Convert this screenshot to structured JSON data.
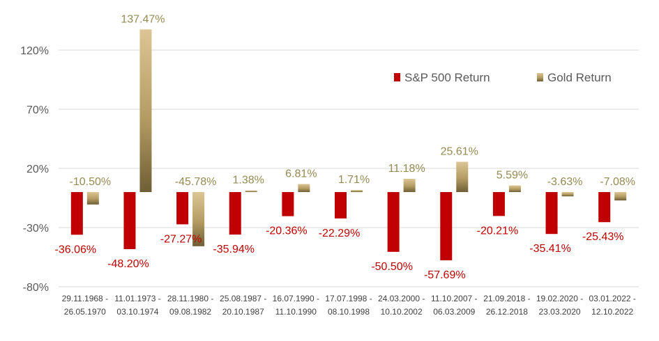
{
  "chart_data": {
    "type": "bar",
    "title": "",
    "xlabel": "",
    "ylabel": "",
    "ylim": [
      -80,
      140
    ],
    "yticks": [
      -80,
      -30,
      20,
      70,
      120
    ],
    "ytick_labels": [
      "-80%",
      "-30%",
      "20%",
      "70%",
      "120%"
    ],
    "grid": true,
    "legend_position": "top-right",
    "categories": [
      [
        "29.11.1968 -",
        "26.05.1970"
      ],
      [
        "11.01.1973 -",
        "03.10.1974"
      ],
      [
        "28.11.1980 -",
        "09.08.1982"
      ],
      [
        "25.08.1987 -",
        "20.10.1987"
      ],
      [
        "16.07.1990 -",
        "11.10.1990"
      ],
      [
        "17.07.1998 -",
        "08.10.1998"
      ],
      [
        "24.03.2000 -",
        "10.10.2002"
      ],
      [
        "11.10.2007 -",
        "06.03.2009"
      ],
      [
        "21.09.2018 -",
        "26.12.2018"
      ],
      [
        "19.02.2020 -",
        "23.03.2020"
      ],
      [
        "03.01.2022 -",
        "12.10.2022"
      ]
    ],
    "series": [
      {
        "name": "S&P 500 Return",
        "color": "#c00000",
        "values": [
          -36.06,
          -48.2,
          -27.27,
          -35.94,
          -20.36,
          -22.29,
          -50.5,
          -57.69,
          -20.21,
          -35.41,
          -25.43
        ],
        "labels": [
          "-36.06%",
          "-48.20%",
          "-27.27%",
          "-35.94%",
          "-20.36%",
          "-22.29%",
          "-50.50%",
          "-57.69%",
          "-20.21%",
          "-35.41%",
          "-25.43%"
        ]
      },
      {
        "name": "Gold Return",
        "color": "#b39b62",
        "values": [
          -10.5,
          137.47,
          -45.78,
          1.38,
          6.81,
          1.71,
          11.18,
          25.61,
          5.59,
          -3.63,
          -7.08
        ],
        "labels": [
          "-10.50%",
          "137.47%",
          "-45.78%",
          "1.38%",
          "6.81%",
          "1.71%",
          "11.18%",
          "25.61%",
          "5.59%",
          "-3.63%",
          "-7.08%"
        ]
      }
    ]
  }
}
